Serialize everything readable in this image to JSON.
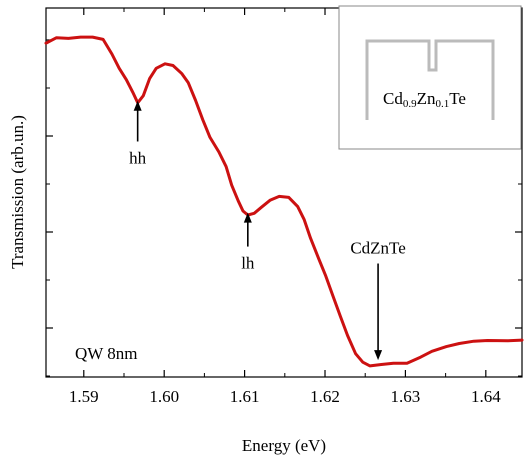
{
  "chart_data": {
    "type": "line",
    "xlabel": "Energy (eV)",
    "ylabel": "Transmission (arb.un.)",
    "xlim": [
      1.5853,
      1.6445
    ],
    "ylim": [
      0,
      1
    ],
    "y_tick_labels_shown": false,
    "x_ticks": [
      1.59,
      1.6,
      1.61,
      1.62,
      1.63,
      1.64
    ],
    "x_tick_labels": [
      "1.59",
      "1.60",
      "1.61",
      "1.62",
      "1.63",
      "1.64"
    ],
    "series": [
      {
        "color": "#cc1111",
        "points": [
          [
            1.5853,
            0.97
          ],
          [
            1.5866,
            0.986
          ],
          [
            1.5881,
            0.984
          ],
          [
            1.5896,
            0.988
          ],
          [
            1.5911,
            0.988
          ],
          [
            1.5924,
            0.981
          ],
          [
            1.5935,
            0.938
          ],
          [
            1.5944,
            0.896
          ],
          [
            1.5953,
            0.862
          ],
          [
            1.5961,
            0.825
          ],
          [
            1.5967,
            0.794
          ],
          [
            1.5974,
            0.815
          ],
          [
            1.5982,
            0.866
          ],
          [
            1.599,
            0.896
          ],
          [
            1.6001,
            0.909
          ],
          [
            1.6011,
            0.904
          ],
          [
            1.6022,
            0.88
          ],
          [
            1.603,
            0.853
          ],
          [
            1.6039,
            0.801
          ],
          [
            1.6048,
            0.744
          ],
          [
            1.6057,
            0.692
          ],
          [
            1.6068,
            0.649
          ],
          [
            1.6077,
            0.606
          ],
          [
            1.6084,
            0.551
          ],
          [
            1.6092,
            0.505
          ],
          [
            1.6098,
            0.475
          ],
          [
            1.6104,
            0.463
          ],
          [
            1.6112,
            0.468
          ],
          [
            1.6121,
            0.486
          ],
          [
            1.6132,
            0.507
          ],
          [
            1.6143,
            0.518
          ],
          [
            1.6155,
            0.515
          ],
          [
            1.6166,
            0.488
          ],
          [
            1.6174,
            0.45
          ],
          [
            1.6182,
            0.395
          ],
          [
            1.6192,
            0.335
          ],
          [
            1.6201,
            0.283
          ],
          [
            1.621,
            0.224
          ],
          [
            1.6219,
            0.165
          ],
          [
            1.6228,
            0.108
          ],
          [
            1.6238,
            0.054
          ],
          [
            1.6247,
            0.029
          ],
          [
            1.6256,
            0.018
          ],
          [
            1.627,
            0.022
          ],
          [
            1.6285,
            0.026
          ],
          [
            1.6302,
            0.026
          ],
          [
            1.6319,
            0.044
          ],
          [
            1.6333,
            0.061
          ],
          [
            1.6351,
            0.075
          ],
          [
            1.6367,
            0.084
          ],
          [
            1.6385,
            0.091
          ],
          [
            1.6402,
            0.093
          ],
          [
            1.6427,
            0.092
          ],
          [
            1.6445,
            0.094
          ]
        ]
      }
    ],
    "annotations": [
      {
        "text": "hh",
        "arrow_x": 1.5967,
        "arrow_from": 0.68,
        "arrow_to": 0.8
      },
      {
        "text": "lh",
        "arrow_x": 1.6104,
        "arrow_from": 0.37,
        "arrow_to": 0.47
      },
      {
        "text": "CdZnTe",
        "arrow_x": 1.6266,
        "arrow_from": 0.32,
        "arrow_to": 0.035
      }
    ],
    "inner_label": "QW 8nm",
    "inset": {
      "prefix": "Cd",
      "sub1": "0.9",
      "mid": "Zn",
      "sub2": "0.1",
      "suffix": "Te"
    }
  }
}
